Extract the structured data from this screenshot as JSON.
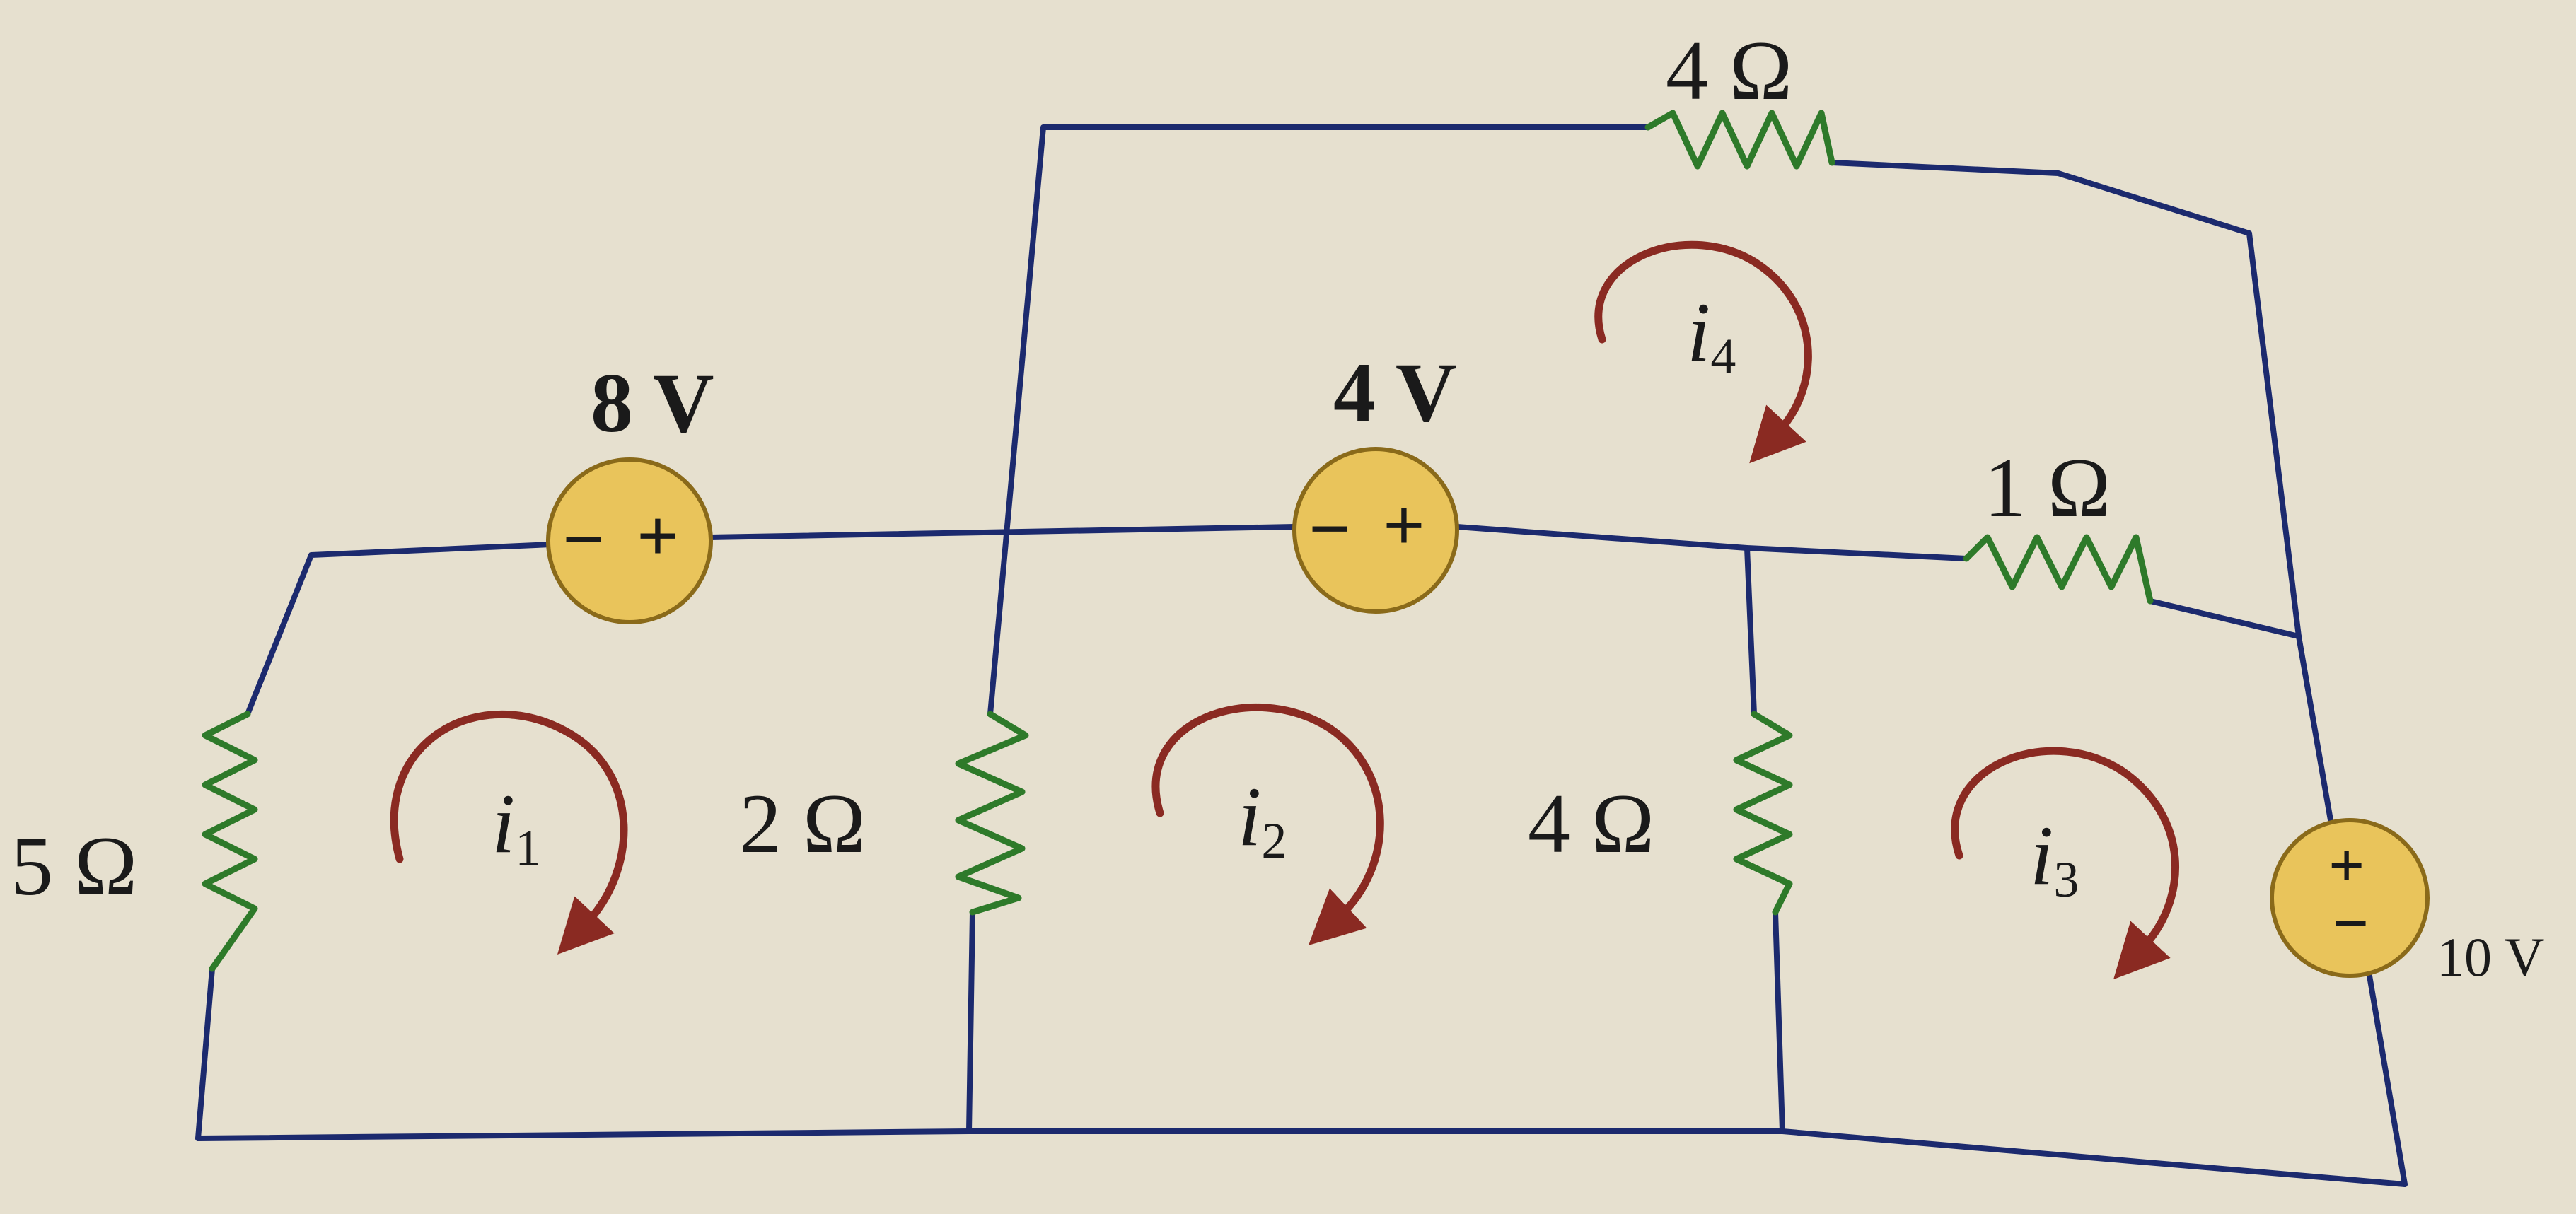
{
  "circuit": {
    "resistors": {
      "r_top": "4 Ω",
      "r_right": "1 Ω",
      "r_left": "5 Ω",
      "r_mid_left": "2 Ω",
      "r_mid_right": "4 Ω"
    },
    "sources": {
      "v_left": {
        "label": "8 V",
        "minus": "−",
        "plus": "+"
      },
      "v_mid": {
        "label": "4 V",
        "minus": "−",
        "plus": "+"
      },
      "v_right": {
        "label": "10 V",
        "minus": "−",
        "plus": "+"
      }
    },
    "meshes": [
      {
        "symbol": "i",
        "index": "1"
      },
      {
        "symbol": "i",
        "index": "2"
      },
      {
        "symbol": "i",
        "index": "3"
      },
      {
        "symbol": "i",
        "index": "4"
      }
    ],
    "colors": {
      "background": "#e6e0cf",
      "wire": "#1c2a6e",
      "resistor": "#2e7a2a",
      "source_fill": "#e9c45b",
      "source_stroke": "#8a6a1a",
      "mesh_arrow": "#8a2a22"
    }
  }
}
